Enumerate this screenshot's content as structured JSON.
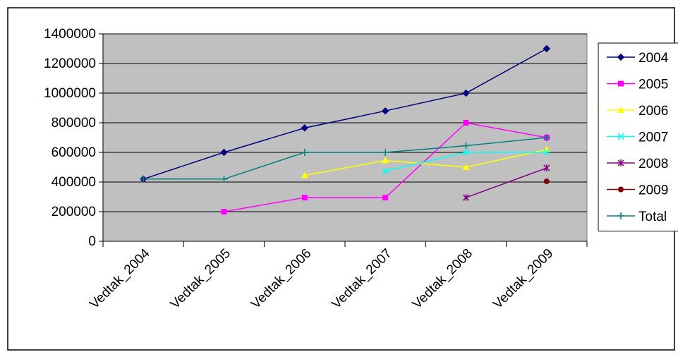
{
  "chart_data": {
    "type": "line",
    "title": "",
    "xlabel": "",
    "ylabel": "",
    "categories": [
      "Vedtak_2004",
      "Vedtak_2005",
      "Vedtak_2006",
      "Vedtak_2007",
      "Vedtak_2008",
      "Vedtak_2009"
    ],
    "ylim": [
      0,
      1400000
    ],
    "yticks": [
      0,
      200000,
      400000,
      600000,
      800000,
      1000000,
      1200000,
      1400000
    ],
    "y_tick_labels": [
      "0",
      "200000",
      "400000",
      "600000",
      "800000",
      "1000000",
      "1200000",
      "1400000"
    ],
    "grid": true,
    "plot_background": "#c0c0c0",
    "legend_position": "right",
    "series": [
      {
        "name": "2004",
        "color": "#000080",
        "marker": "diamond",
        "values": [
          420000,
          600000,
          765000,
          880000,
          1000000,
          1300000
        ]
      },
      {
        "name": "2005",
        "color": "#ff00ff",
        "marker": "square",
        "values": [
          null,
          200000,
          295000,
          295000,
          800000,
          700000
        ]
      },
      {
        "name": "2006",
        "color": "#ffff00",
        "marker": "triangle",
        "values": [
          null,
          null,
          445000,
          545000,
          500000,
          620000
        ]
      },
      {
        "name": "2007",
        "color": "#00ffff",
        "marker": "x",
        "values": [
          null,
          null,
          null,
          475000,
          600000,
          600000
        ]
      },
      {
        "name": "2008",
        "color": "#800080",
        "marker": "asterisk",
        "values": [
          null,
          null,
          null,
          null,
          295000,
          495000
        ]
      },
      {
        "name": "2009",
        "color": "#800000",
        "marker": "circle",
        "values": [
          null,
          null,
          null,
          null,
          null,
          405000
        ]
      },
      {
        "name": "Total",
        "color": "#008080",
        "marker": "plus",
        "values": [
          420000,
          420000,
          600000,
          600000,
          645000,
          700000
        ]
      }
    ]
  }
}
